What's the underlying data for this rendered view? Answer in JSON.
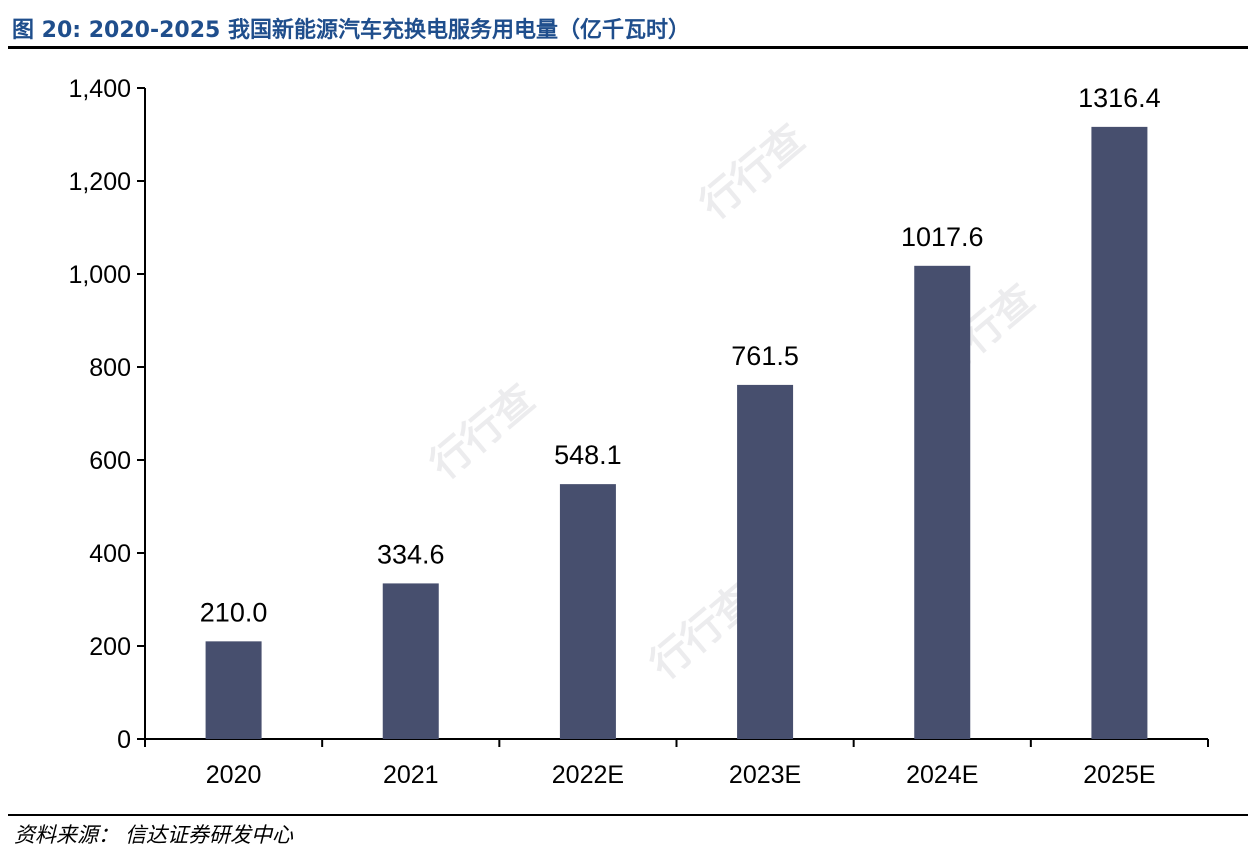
{
  "header": {
    "title": "图 20:  2020-2025 我国新能源汽车充换电服务用电量（亿千瓦时）"
  },
  "footer": {
    "source_label": "资料来源：",
    "source_value": "信达证券研发中心"
  },
  "watermark": {
    "text": "行行查"
  },
  "colors": {
    "bar": "#474f6e",
    "axis": "#000000",
    "title": "#1f4e8c"
  },
  "chart_data": {
    "type": "bar",
    "title": "",
    "xlabel": "",
    "ylabel": "",
    "categories": [
      "2020",
      "2021",
      "2022E",
      "2023E",
      "2024E",
      "2025E"
    ],
    "values": [
      210.0,
      334.6,
      548.1,
      761.5,
      1017.6,
      1316.4
    ],
    "data_labels": [
      "210.0",
      "334.6",
      "548.1",
      "761.5",
      "1017.6",
      "1316.4"
    ],
    "ylim": [
      0,
      1400
    ],
    "yticks": [
      0,
      200,
      400,
      600,
      800,
      1000,
      1200,
      1400
    ],
    "ytick_labels": [
      "0",
      "200",
      "400",
      "600",
      "800",
      "1,000",
      "1,200",
      "1,400"
    ],
    "grid": false,
    "legend": "none"
  }
}
